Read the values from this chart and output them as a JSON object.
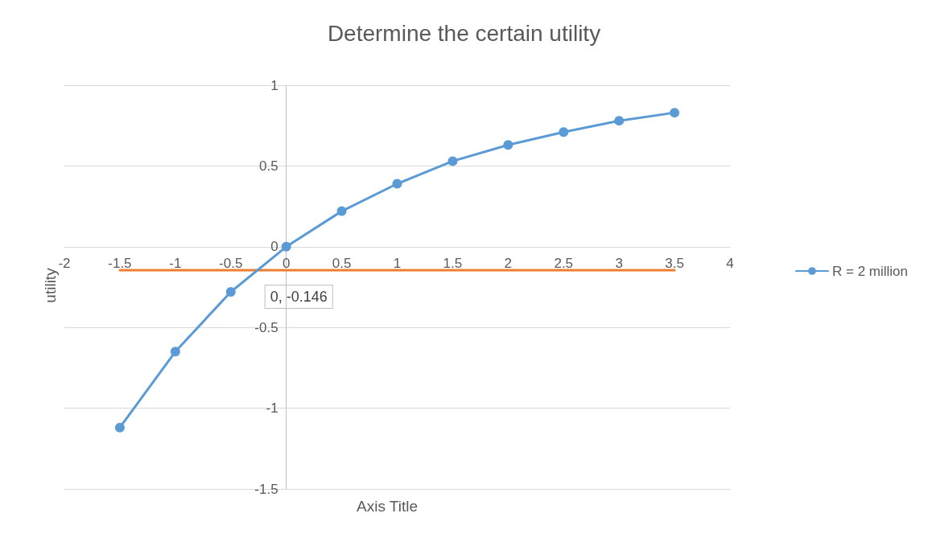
{
  "chart_data": {
    "type": "line",
    "title": "Determine the certain utility",
    "xlabel": "Axis Title",
    "ylabel": "utility",
    "annotations": [
      {
        "text": "0, -0.146",
        "x": 0,
        "y": -0.146
      }
    ],
    "series": [
      {
        "name": "R = 2 million",
        "color": "#5b9bd5",
        "x": [
          -1.5,
          -1,
          -0.5,
          0,
          0.5,
          1,
          1.5,
          2,
          2.5,
          3,
          3.5
        ],
        "values": [
          -1.12,
          -0.65,
          -0.28,
          0,
          0.22,
          0.39,
          0.53,
          0.63,
          0.71,
          0.78,
          0.83
        ],
        "marker": "circle"
      },
      {
        "color": "#ed7d31",
        "x": [
          -1.5,
          3.5
        ],
        "values": [
          -0.146,
          -0.146
        ],
        "marker": "none"
      }
    ],
    "xlim": [
      -2,
      4
    ],
    "xticks": [
      -2,
      -1.5,
      -1,
      -0.5,
      0,
      0.5,
      1,
      1.5,
      2,
      2.5,
      3,
      3.5,
      4
    ],
    "ylim": [
      -1.5,
      1
    ],
    "yticks": [
      -1.5,
      -1,
      -0.5,
      0,
      0.5,
      1
    ],
    "grid": "y",
    "legend": "right",
    "line_style": "solid"
  }
}
